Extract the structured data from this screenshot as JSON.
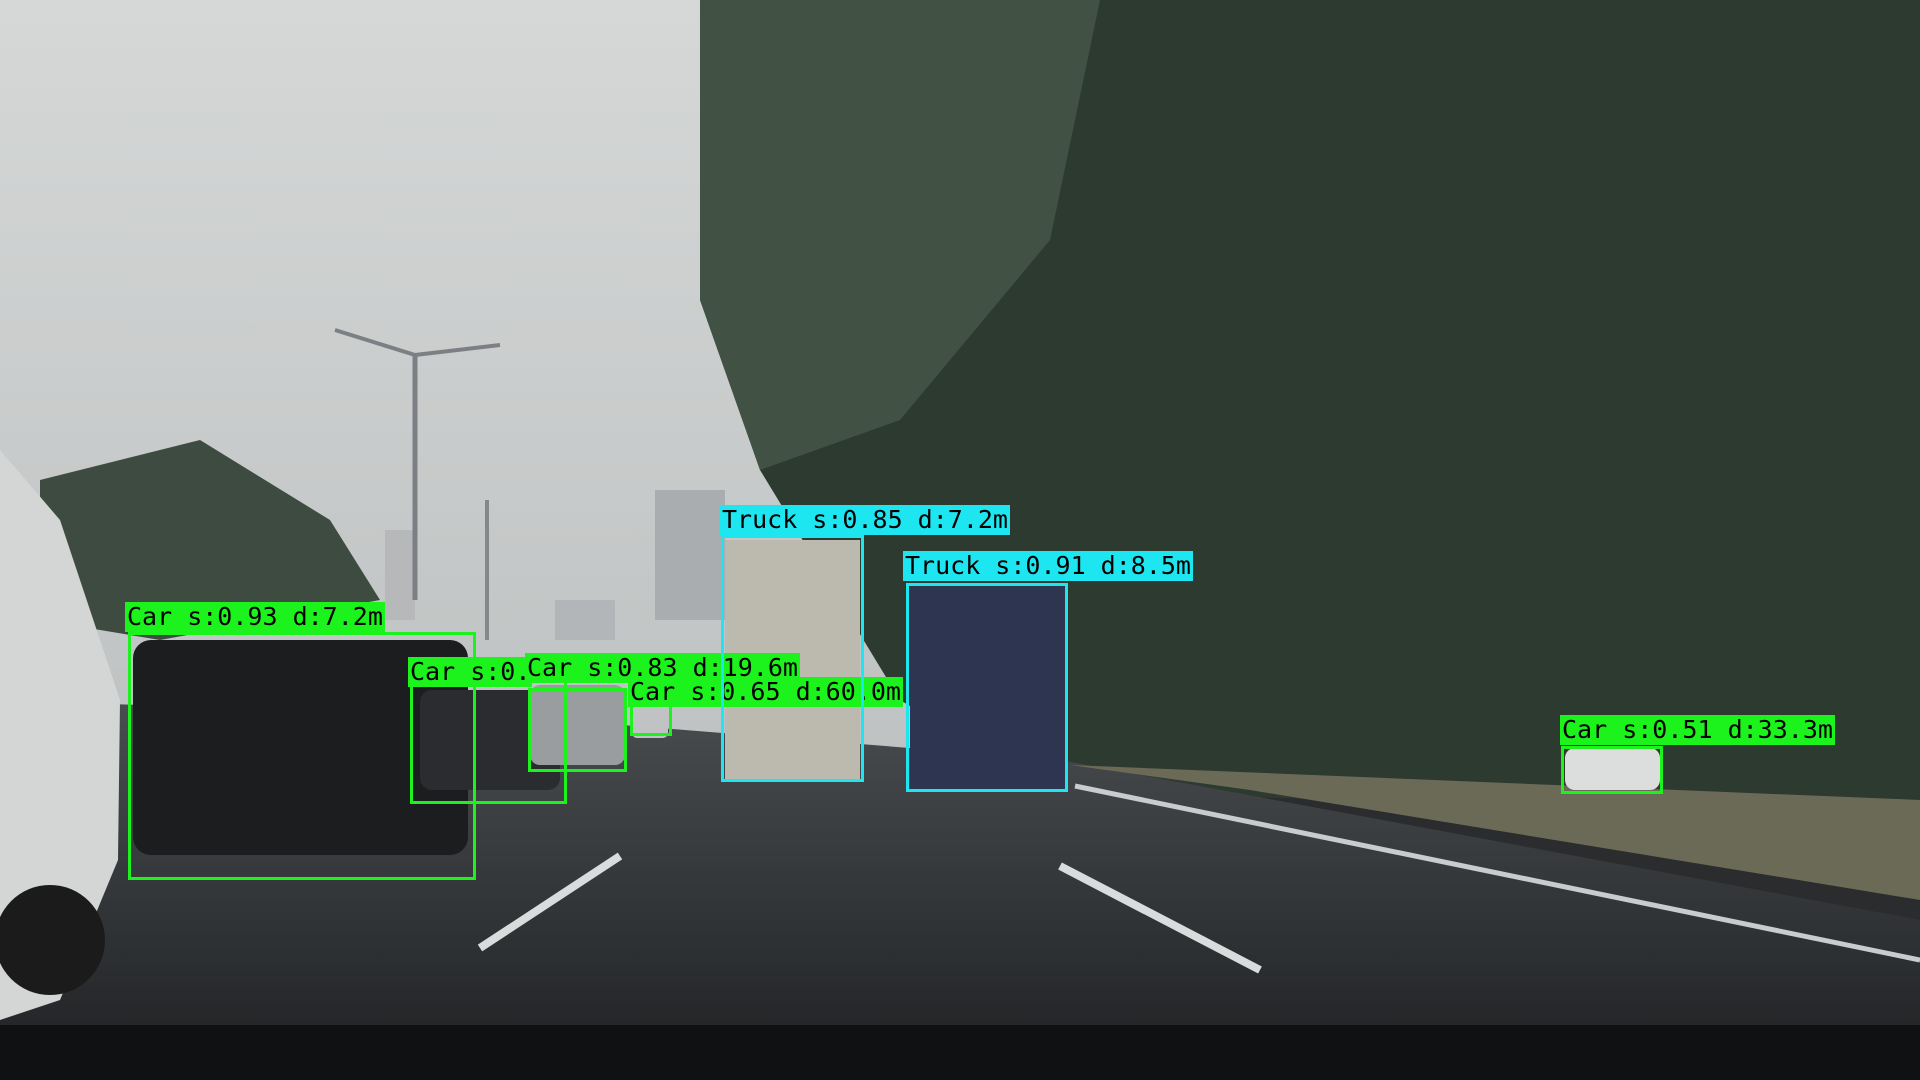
{
  "palette": {
    "car": "#1cf21c",
    "truck": "#1ee6f0"
  },
  "detections": [
    {
      "class": "car",
      "label": "Car s:0.93 d:7.2m"
    },
    {
      "class": "car",
      "label": "Car s:0."
    },
    {
      "class": "car",
      "label": "Car s:0.83 d:19.6m"
    },
    {
      "class": "car",
      "label": "Car s:0.65 d:60.0m"
    },
    {
      "class": "truck",
      "label": "Truck s:0.85 d:7.2m"
    },
    {
      "class": "truck",
      "label": "Truck s:0.91 d:8.5m"
    },
    {
      "class": "car",
      "label": "Car s:0.51 d:33.3m"
    }
  ]
}
